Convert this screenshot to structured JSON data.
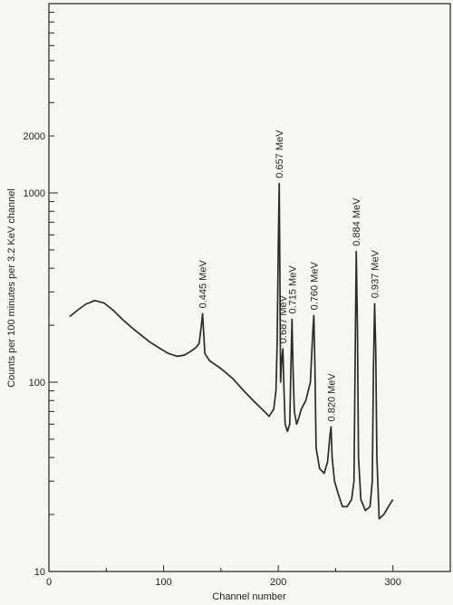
{
  "chart_data": {
    "type": "line",
    "xlabel": "Channel number",
    "ylabel": "Counts per 100 minutes per 3.2 KeV channel",
    "xlim": [
      0,
      350
    ],
    "ylim": [
      10,
      10000
    ],
    "y_scale": "log",
    "x_ticks": [
      0,
      100,
      200,
      300
    ],
    "x_tick_labels": [
      "0",
      "100",
      "200",
      "300"
    ],
    "y_ticks": [
      10,
      100,
      1000,
      2000
    ],
    "y_tick_labels": [
      "10",
      "100",
      "1000",
      "2000"
    ],
    "grid": false,
    "series": [
      {
        "points": [
          [
            18,
            222
          ],
          [
            25,
            240
          ],
          [
            32,
            258
          ],
          [
            40,
            270
          ],
          [
            48,
            262
          ],
          [
            56,
            240
          ],
          [
            64,
            215
          ],
          [
            72,
            195
          ],
          [
            80,
            178
          ],
          [
            88,
            163
          ],
          [
            96,
            152
          ],
          [
            104,
            142
          ],
          [
            112,
            137
          ],
          [
            118,
            139
          ],
          [
            124,
            146
          ],
          [
            128,
            152
          ],
          [
            131,
            160
          ],
          [
            133,
            200
          ],
          [
            134,
            230
          ],
          [
            135,
            180
          ],
          [
            136,
            142
          ],
          [
            140,
            130
          ],
          [
            150,
            118
          ],
          [
            160,
            105
          ],
          [
            170,
            90
          ],
          [
            180,
            78
          ],
          [
            188,
            70
          ],
          [
            192,
            66
          ],
          [
            196,
            72
          ],
          [
            198,
            90
          ],
          [
            199,
            160
          ],
          [
            200,
            500
          ],
          [
            200.8,
            1120
          ],
          [
            201.4,
            400
          ],
          [
            202,
            100
          ],
          [
            203,
            130
          ],
          [
            204,
            150
          ],
          [
            205,
            90
          ],
          [
            206,
            60
          ],
          [
            208,
            55
          ],
          [
            210,
            60
          ],
          [
            211,
            120
          ],
          [
            212,
            215
          ],
          [
            213,
            110
          ],
          [
            214,
            70
          ],
          [
            216,
            60
          ],
          [
            218,
            65
          ],
          [
            220,
            72
          ],
          [
            224,
            80
          ],
          [
            228,
            100
          ],
          [
            230,
            180
          ],
          [
            231,
            225
          ],
          [
            232,
            120
          ],
          [
            233,
            45
          ],
          [
            236,
            35
          ],
          [
            240,
            33
          ],
          [
            243,
            38
          ],
          [
            245,
            52
          ],
          [
            246,
            58
          ],
          [
            247,
            40
          ],
          [
            249,
            30
          ],
          [
            252,
            26
          ],
          [
            256,
            22
          ],
          [
            260,
            22
          ],
          [
            264,
            24
          ],
          [
            266,
            30
          ],
          [
            267,
            120
          ],
          [
            268,
            490
          ],
          [
            269,
            200
          ],
          [
            270,
            40
          ],
          [
            272,
            24
          ],
          [
            276,
            21
          ],
          [
            280,
            22
          ],
          [
            282,
            30
          ],
          [
            283,
            120
          ],
          [
            284,
            260
          ],
          [
            285,
            150
          ],
          [
            286,
            40
          ],
          [
            288,
            19
          ],
          [
            292,
            20
          ],
          [
            296,
            22
          ],
          [
            300,
            24
          ]
        ]
      }
    ],
    "annotations": [
      {
        "text": "0.445 MeV",
        "x": 134,
        "y": 230
      },
      {
        "text": "0.657 MeV",
        "x": 200.8,
        "y": 1120
      },
      {
        "text": "0.687 MeV",
        "x": 204,
        "y": 150
      },
      {
        "text": "0.715 MeV",
        "x": 212,
        "y": 215
      },
      {
        "text": "0.760 MeV",
        "x": 231,
        "y": 225
      },
      {
        "text": "0.820 MeV",
        "x": 246,
        "y": 58
      },
      {
        "text": "0.884 MeV",
        "x": 268,
        "y": 490
      },
      {
        "text": "0.937 MeV",
        "x": 284,
        "y": 260
      }
    ],
    "line_color": "#2a2a2a"
  }
}
